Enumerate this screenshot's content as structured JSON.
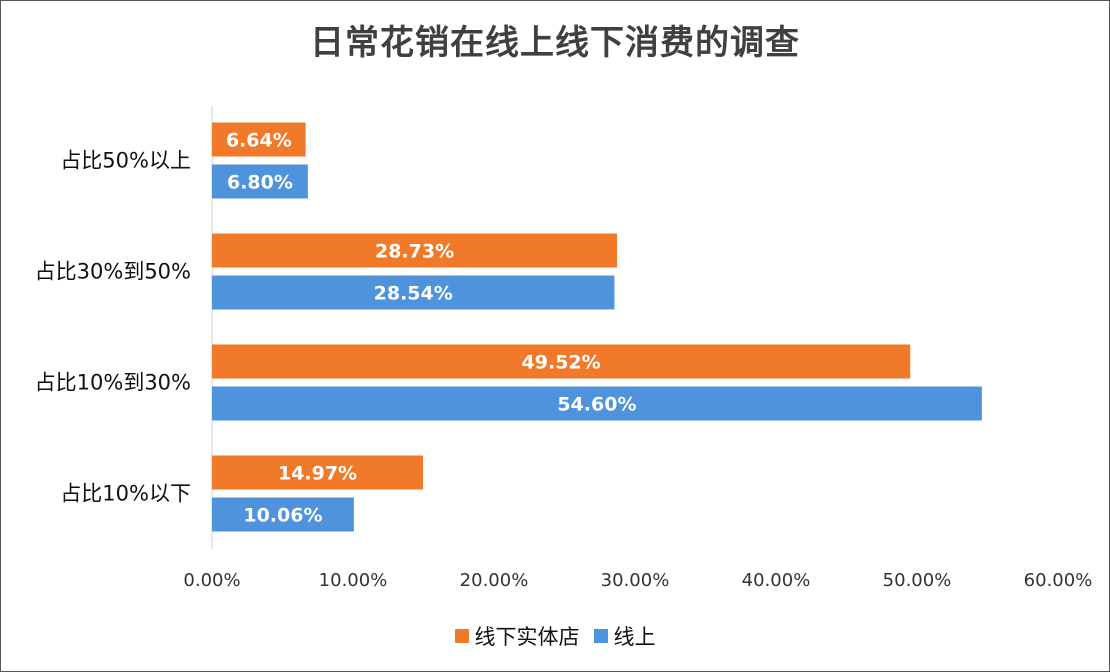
{
  "chart_data": {
    "type": "bar",
    "orientation": "horizontal",
    "title": "日常花销在线上线下消费的调查",
    "categories": [
      "占比50%以上",
      "占比30%到50%",
      "占比10%到30%",
      "占比10%以下"
    ],
    "series": [
      {
        "name": "线下实体店",
        "color": "#F07A2A",
        "values": [
          6.64,
          28.73,
          49.52,
          14.97
        ],
        "labels": [
          "6.64%",
          "28.73%",
          "49.52%",
          "14.97%"
        ]
      },
      {
        "name": "线上",
        "color": "#4E93DB",
        "values": [
          6.8,
          28.54,
          54.6,
          10.06
        ],
        "labels": [
          "6.80%",
          "28.54%",
          "54.60%",
          "10.06%"
        ]
      }
    ],
    "xlim": [
      0,
      60
    ],
    "xticks": [
      "0.00%",
      "10.00%",
      "20.00%",
      "30.00%",
      "40.00%",
      "50.00%",
      "60.00%"
    ],
    "xlabel": "",
    "ylabel": "",
    "grid": false,
    "legend": "bottom"
  }
}
